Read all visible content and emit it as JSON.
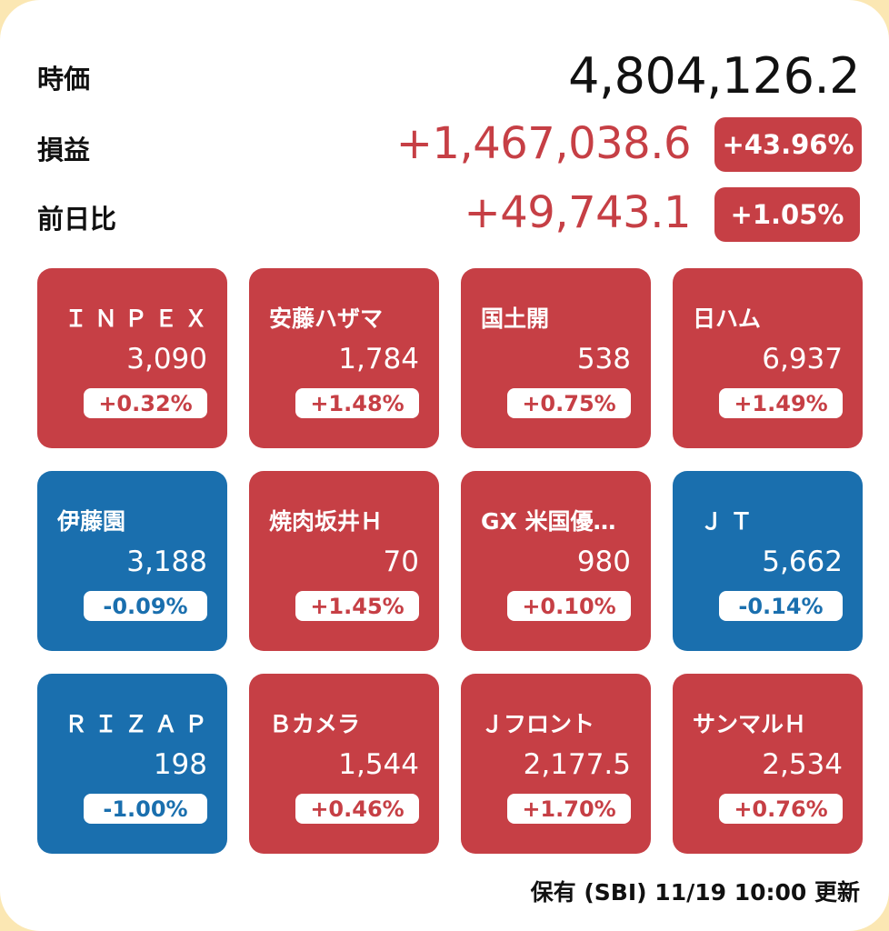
{
  "colors": {
    "up": "#c63f45",
    "down": "#1a6fae",
    "text": "#111111",
    "background": "#ffffff",
    "frame": "#fbe7b3"
  },
  "summary": {
    "market_value_label": "時価",
    "market_value": "4,804,126.2",
    "profit_label": "損益",
    "profit_value": "+1,467,038.6",
    "profit_pct": "+43.96%",
    "daychange_label": "前日比",
    "daychange_value": "+49,743.1",
    "daychange_pct": "+1.05%"
  },
  "stocks": [
    {
      "name": "ＩＮＰＥＸ",
      "price": "3,090",
      "change": "+0.32%",
      "direction": "up"
    },
    {
      "name": "安藤ハザマ",
      "price": "1,784",
      "change": "+1.48%",
      "direction": "up"
    },
    {
      "name": "国土開",
      "price": "538",
      "change": "+0.75%",
      "direction": "up"
    },
    {
      "name": "日ハム",
      "price": "6,937",
      "change": "+1.49%",
      "direction": "up"
    },
    {
      "name": "伊藤園",
      "price": "3,188",
      "change": "-0.09%",
      "direction": "down"
    },
    {
      "name": "焼肉坂井Ｈ",
      "price": "70",
      "change": "+1.45%",
      "direction": "up"
    },
    {
      "name": "GX 米国優…",
      "price": "980",
      "change": "+0.10%",
      "direction": "up"
    },
    {
      "name": "ＪＴ",
      "price": "5,662",
      "change": "-0.14%",
      "direction": "down"
    },
    {
      "name": "ＲＩＺＡＰ",
      "price": "198",
      "change": "-1.00%",
      "direction": "down"
    },
    {
      "name": "Ｂカメラ",
      "price": "1,544",
      "change": "+0.46%",
      "direction": "up"
    },
    {
      "name": "Ｊフロント",
      "price": "2,177.5",
      "change": "+1.70%",
      "direction": "up"
    },
    {
      "name": "サンマルＨ",
      "price": "2,534",
      "change": "+0.76%",
      "direction": "up"
    }
  ],
  "footer": {
    "text": "保有 (SBI) 11/19 10:00 更新"
  }
}
